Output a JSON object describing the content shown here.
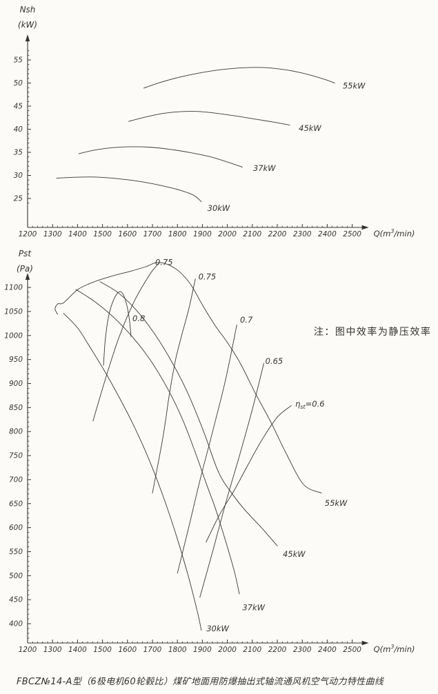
{
  "page": {
    "caption": "FBCZ№14-A型（6极电机60轮毂比）煤矿地面用防爆抽出式轴流通风机空气动力特性曲线"
  },
  "chart_data": [
    {
      "type": "line",
      "name": "shaft-power",
      "title": "",
      "ylabel_lines": [
        "Nsh",
        "(kW)"
      ],
      "xlabel": {
        "pre": "Q(m",
        "sup": "3",
        "post": "/min)"
      },
      "xlim": [
        1200,
        2500
      ],
      "ylim": [
        19,
        57
      ],
      "x_ticks": [
        1200,
        1300,
        1400,
        1500,
        1600,
        1700,
        1800,
        1900,
        2000,
        2100,
        2200,
        2300,
        2400,
        2500
      ],
      "x_major_step": 100,
      "x_minor_step": 20,
      "y_ticks": [
        25,
        30,
        35,
        40,
        45,
        50,
        55
      ],
      "y_major_step": 5,
      "y_minor_step": 1,
      "y_minor_range": [
        24,
        57
      ],
      "grid": false,
      "legend": "curve-end-labels",
      "series": [
        {
          "name": "30kW",
          "label": "30kW",
          "label_at": [
            1920,
            22.3
          ],
          "points": [
            [
              1316,
              29.4
            ],
            [
              1390,
              29.6
            ],
            [
              1460,
              29.65
            ],
            [
              1530,
              29.45
            ],
            [
              1600,
              29.05
            ],
            [
              1670,
              28.5
            ],
            [
              1740,
              27.75
            ],
            [
              1810,
              26.8
            ],
            [
              1865,
              25.7
            ],
            [
              1896,
              24.3
            ]
          ]
        },
        {
          "name": "37kW",
          "label": "37kW",
          "label_at": [
            2103,
            31.0
          ],
          "points": [
            [
              1405,
              34.7
            ],
            [
              1470,
              35.5
            ],
            [
              1540,
              36.0
            ],
            [
              1610,
              36.2
            ],
            [
              1690,
              36.1
            ],
            [
              1770,
              35.65
            ],
            [
              1850,
              34.95
            ],
            [
              1930,
              34.05
            ],
            [
              2000,
              32.9
            ],
            [
              2060,
              31.8
            ]
          ]
        },
        {
          "name": "45kW",
          "label": "45kW",
          "label_at": [
            2286,
            39.6
          ],
          "points": [
            [
              1605,
              41.7
            ],
            [
              1670,
              42.6
            ],
            [
              1740,
              43.4
            ],
            [
              1810,
              43.8
            ],
            [
              1880,
              43.85
            ],
            [
              1950,
              43.5
            ],
            [
              2030,
              42.9
            ],
            [
              2110,
              42.2
            ],
            [
              2190,
              41.5
            ],
            [
              2250,
              40.9
            ]
          ]
        },
        {
          "name": "55kW",
          "label": "55kW",
          "label_at": [
            2462,
            48.8
          ],
          "points": [
            [
              1665,
              48.9
            ],
            [
              1730,
              50.1
            ],
            [
              1810,
              51.3
            ],
            [
              1890,
              52.2
            ],
            [
              1975,
              52.9
            ],
            [
              2060,
              53.3
            ],
            [
              2150,
              53.35
            ],
            [
              2240,
              52.8
            ],
            [
              2320,
              51.9
            ],
            [
              2390,
              50.8
            ],
            [
              2430,
              50.0
            ]
          ]
        }
      ]
    },
    {
      "type": "line",
      "name": "static-pressure",
      "title": "",
      "ylabel_lines": [
        "Pst",
        "(Pa)"
      ],
      "xlabel": {
        "pre": "Q(m",
        "sup": "3",
        "post": "/min)"
      },
      "xlim": [
        1200,
        2500
      ],
      "ylim": [
        360,
        1160
      ],
      "x_ticks": [
        1200,
        1300,
        1400,
        1500,
        1600,
        1700,
        1800,
        1900,
        2000,
        2100,
        2200,
        2300,
        2400,
        2500
      ],
      "x_major_step": 100,
      "x_minor_step": 20,
      "y_ticks": [
        400,
        450,
        500,
        550,
        600,
        650,
        700,
        750,
        800,
        850,
        900,
        950,
        1000,
        1050,
        1100
      ],
      "y_major_step": 50,
      "y_minor_step": 10,
      "y_minor_range": [
        370,
        1100
      ],
      "grid": false,
      "legend": "curve-end-labels",
      "series": [
        {
          "name": "30kW",
          "label": "30kW",
          "label_at": [
            1916,
            384
          ],
          "points": [
            [
              1344,
              1046
            ],
            [
              1400,
              1016
            ],
            [
              1452,
              974
            ],
            [
              1506,
              928
            ],
            [
              1562,
              876
            ],
            [
              1620,
              818
            ],
            [
              1678,
              752
            ],
            [
              1734,
              678
            ],
            [
              1788,
              596
            ],
            [
              1840,
              506
            ],
            [
              1880,
              425
            ],
            [
              1896,
              386
            ]
          ]
        },
        {
          "name": "37kW",
          "label": "37kW",
          "label_at": [
            2060,
            428
          ],
          "points": [
            [
              1393,
              1096
            ],
            [
              1465,
              1072
            ],
            [
              1540,
              1040
            ],
            [
              1615,
              1000
            ],
            [
              1690,
              950
            ],
            [
              1760,
              890
            ],
            [
              1820,
              826
            ],
            [
              1872,
              756
            ],
            [
              1914,
              694
            ],
            [
              1954,
              637
            ],
            [
              2000,
              560
            ],
            [
              2030,
              505
            ],
            [
              2048,
              462
            ]
          ]
        },
        {
          "name": "45kW",
          "label": "45kW",
          "label_at": [
            2222,
            539
          ],
          "points": [
            [
              1490,
              1112
            ],
            [
              1560,
              1090
            ],
            [
              1630,
              1056
            ],
            [
              1700,
              1010
            ],
            [
              1770,
              952
            ],
            [
              1840,
              882
            ],
            [
              1905,
              800
            ],
            [
              1965,
              715
            ],
            [
              2020,
              670
            ],
            [
              2070,
              637
            ],
            [
              2140,
              598
            ],
            [
              2200,
              562
            ]
          ]
        },
        {
          "name": "55kW",
          "label": "55kW",
          "label_at": [
            2390,
            645
          ],
          "points": [
            [
              1320,
              1044
            ],
            [
              1310,
              1056
            ],
            [
              1322,
              1066
            ],
            [
              1344,
              1068
            ],
            [
              1402,
              1096
            ],
            [
              1468,
              1112
            ],
            [
              1540,
              1124
            ],
            [
              1614,
              1134
            ],
            [
              1672,
              1143
            ],
            [
              1725,
              1152
            ],
            [
              1790,
              1140
            ],
            [
              1848,
              1110
            ],
            [
              1902,
              1062
            ],
            [
              1952,
              1020
            ],
            [
              2002,
              984
            ],
            [
              2052,
              942
            ],
            [
              2112,
              880
            ],
            [
              2176,
              818
            ],
            [
              2236,
              754
            ],
            [
              2305,
              690
            ],
            [
              2377,
              672
            ]
          ]
        }
      ],
      "efficiency_lines": [
        {
          "label": "0.8",
          "label_at": [
            1620,
            1030
          ],
          "points": [
            [
              1504,
              938
            ],
            [
              1512,
              996
            ],
            [
              1528,
              1048
            ],
            [
              1552,
              1082
            ],
            [
              1574,
              1091
            ],
            [
              1594,
              1070
            ],
            [
              1608,
              1032
            ],
            [
              1614,
              998
            ]
          ]
        },
        {
          "label": "0.75",
          "label_at": [
            1711,
            1147
          ],
          "points": [
            [
              1462,
              822
            ],
            [
              1512,
              910
            ],
            [
              1566,
              996
            ],
            [
              1626,
              1070
            ],
            [
              1688,
              1126
            ],
            [
              1724,
              1150
            ]
          ]
        },
        {
          "label": "0.75",
          "label_at": [
            1884,
            1117
          ],
          "points": [
            [
              1700,
              672
            ],
            [
              1742,
              788
            ],
            [
              1768,
              878
            ],
            [
              1792,
              948
            ],
            [
              1818,
              1002
            ],
            [
              1846,
              1056
            ],
            [
              1872,
              1118
            ]
          ]
        },
        {
          "label": "0.7",
          "label_at": [
            2051,
            1027
          ],
          "points": [
            [
              1800,
              505
            ],
            [
              1846,
              602
            ],
            [
              1892,
              702
            ],
            [
              1942,
              802
            ],
            [
              1992,
              906
            ],
            [
              2038,
              1022
            ]
          ]
        },
        {
          "label": "0.65",
          "label_at": [
            2152,
            941
          ],
          "points": [
            [
              1890,
              455
            ],
            [
              1942,
              552
            ],
            [
              1996,
              656
            ],
            [
              2052,
              756
            ],
            [
              2102,
              850
            ],
            [
              2146,
              942
            ]
          ]
        },
        {
          "label": {
            "pre": "η",
            "sub": "st",
            "post": "=0.6"
          },
          "label_at": [
            2272,
            852
          ],
          "points": [
            [
              1915,
              570
            ],
            [
              1970,
              628
            ],
            [
              2030,
              680
            ],
            [
              2085,
              733
            ],
            [
              2140,
              784
            ],
            [
              2200,
              830
            ],
            [
              2256,
              854
            ]
          ]
        }
      ],
      "annotations": [
        {
          "text": "注：图中效率为静压效率",
          "at": [
            2346,
            1001
          ]
        }
      ]
    }
  ]
}
